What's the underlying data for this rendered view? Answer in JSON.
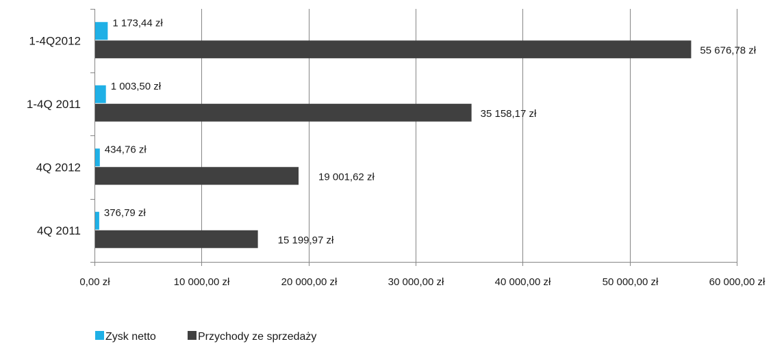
{
  "chart_data": {
    "type": "bar",
    "orientation": "horizontal",
    "title": "",
    "xlabel": "",
    "ylabel": "",
    "categories": [
      "1-4Q2012",
      "1-4Q 2011",
      "4Q 2012",
      "4Q 2011"
    ],
    "series": [
      {
        "name": "Zysk netto",
        "color": "#1fb0e6",
        "values": [
          1173.44,
          1003.5,
          434.76,
          376.79
        ],
        "data_labels": [
          "1 173,44 zł",
          "1 003,50 zł",
          "434,76 zł",
          "376,79 zł"
        ]
      },
      {
        "name": "Przychody ze sprzedaży",
        "color": "#404040",
        "values": [
          55676.78,
          35158.17,
          19001.62,
          15199.97
        ],
        "data_labels": [
          "55 676,78 zł",
          "35 158,17 zł",
          "19 001,62 zł",
          "15 199,97 zł"
        ]
      }
    ],
    "xlim": [
      0,
      60000
    ],
    "x_ticks": [
      0,
      10000,
      20000,
      30000,
      40000,
      50000,
      60000
    ],
    "x_tick_labels": [
      "0,00 zł",
      "10 000,00 zł",
      "20 000,00 zł",
      "30 000,00 zł",
      "40 000,00 zł",
      "50 000,00 zł",
      "60 000,00 zł"
    ],
    "grid": "vertical",
    "legend_position": "bottom-left",
    "gridline_color": "#858585",
    "axis_color": "#858585"
  }
}
